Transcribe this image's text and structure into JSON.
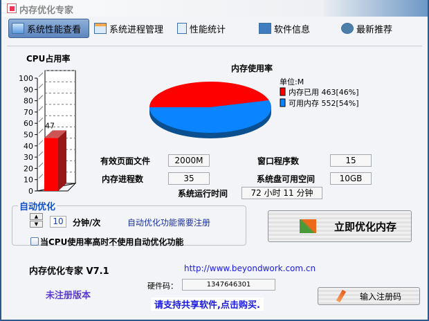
{
  "window": {
    "title": "内存优化专家"
  },
  "toolbar": [
    {
      "label": "系统性能查看",
      "icon": "monitor-icon",
      "active": true
    },
    {
      "label": "系统进程管理",
      "icon": "window-icon"
    },
    {
      "label": "性能统计",
      "icon": "magnifier-icon"
    },
    {
      "label": "软件信息",
      "icon": "info-book-icon"
    },
    {
      "label": "最新推荐",
      "icon": "gear-globe-icon"
    }
  ],
  "chart_data": [
    {
      "type": "bar",
      "title": "CPU占用率",
      "categories": [
        "CPU"
      ],
      "values": [
        47
      ],
      "ylim": [
        0,
        100
      ],
      "yticks": [
        0,
        10,
        20,
        30,
        40,
        50,
        60,
        70,
        80,
        90,
        100
      ],
      "grid": true,
      "colors": {
        "bar": "#ff0000"
      }
    },
    {
      "type": "pie",
      "title": "内存使用率",
      "unit_label": "单位:M",
      "legend_position": "right",
      "series": [
        {
          "name": "内存已用",
          "value": 463,
          "pct": "46%",
          "color": "#ff0000"
        },
        {
          "name": "可用内存",
          "value": 552,
          "pct": "54%",
          "color": "#0a84ff"
        }
      ]
    }
  ],
  "stats": {
    "page_file_label": "有效页面文件",
    "page_file": "2000M",
    "windows_label": "窗口程序数",
    "windows": "15",
    "processes_label": "内存进程数",
    "processes": "35",
    "disk_label": "系统盘可用空间",
    "disk": "10GB",
    "uptime_label": "系统运行时间",
    "uptime": "72 小时 11 分钟"
  },
  "auto": {
    "title": "自动优化",
    "interval": "10",
    "unit": "分钟/次",
    "notice": "自动优化功能需要注册",
    "checkbox": "当CPU使用率高时不使用自动优化功能",
    "checked": false
  },
  "optimize_button": "立即优化内存",
  "footer": {
    "product": "内存优化专家 V7.1",
    "url": "http://www.beyondwork.com.cn",
    "hw_label": "硬件码：",
    "hw_code": "1347646301",
    "unregistered": "未注册版本",
    "support": "请支持共享软件,点击购买.",
    "register_button": "输入注册码"
  }
}
